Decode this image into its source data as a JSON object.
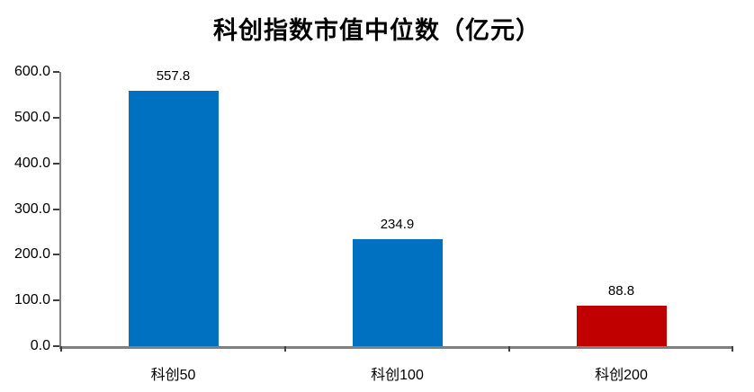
{
  "chart_data": {
    "type": "bar",
    "title": "科创指数市值中位数（亿元）",
    "categories": [
      "科创50",
      "科创100",
      "科创200"
    ],
    "values": [
      557.8,
      234.9,
      88.8
    ],
    "value_labels": [
      "557.8",
      "234.9",
      "88.8"
    ],
    "bar_colors": [
      "#0070C0",
      "#0070C0",
      "#C00000"
    ],
    "ylim": [
      0,
      600
    ],
    "ytick_step": 100,
    "ytick_labels": [
      "0.0",
      "100.0",
      "200.0",
      "300.0",
      "400.0",
      "500.0",
      "600.0"
    ],
    "xlabel": "",
    "ylabel": "",
    "grid": false,
    "legend": null,
    "colors": {
      "bar_blue": "#0070C0",
      "bar_red": "#C00000",
      "axis_line": "#808080",
      "tick_mark": "#404040",
      "text": "#000000",
      "background": "#FFFFFF"
    }
  }
}
